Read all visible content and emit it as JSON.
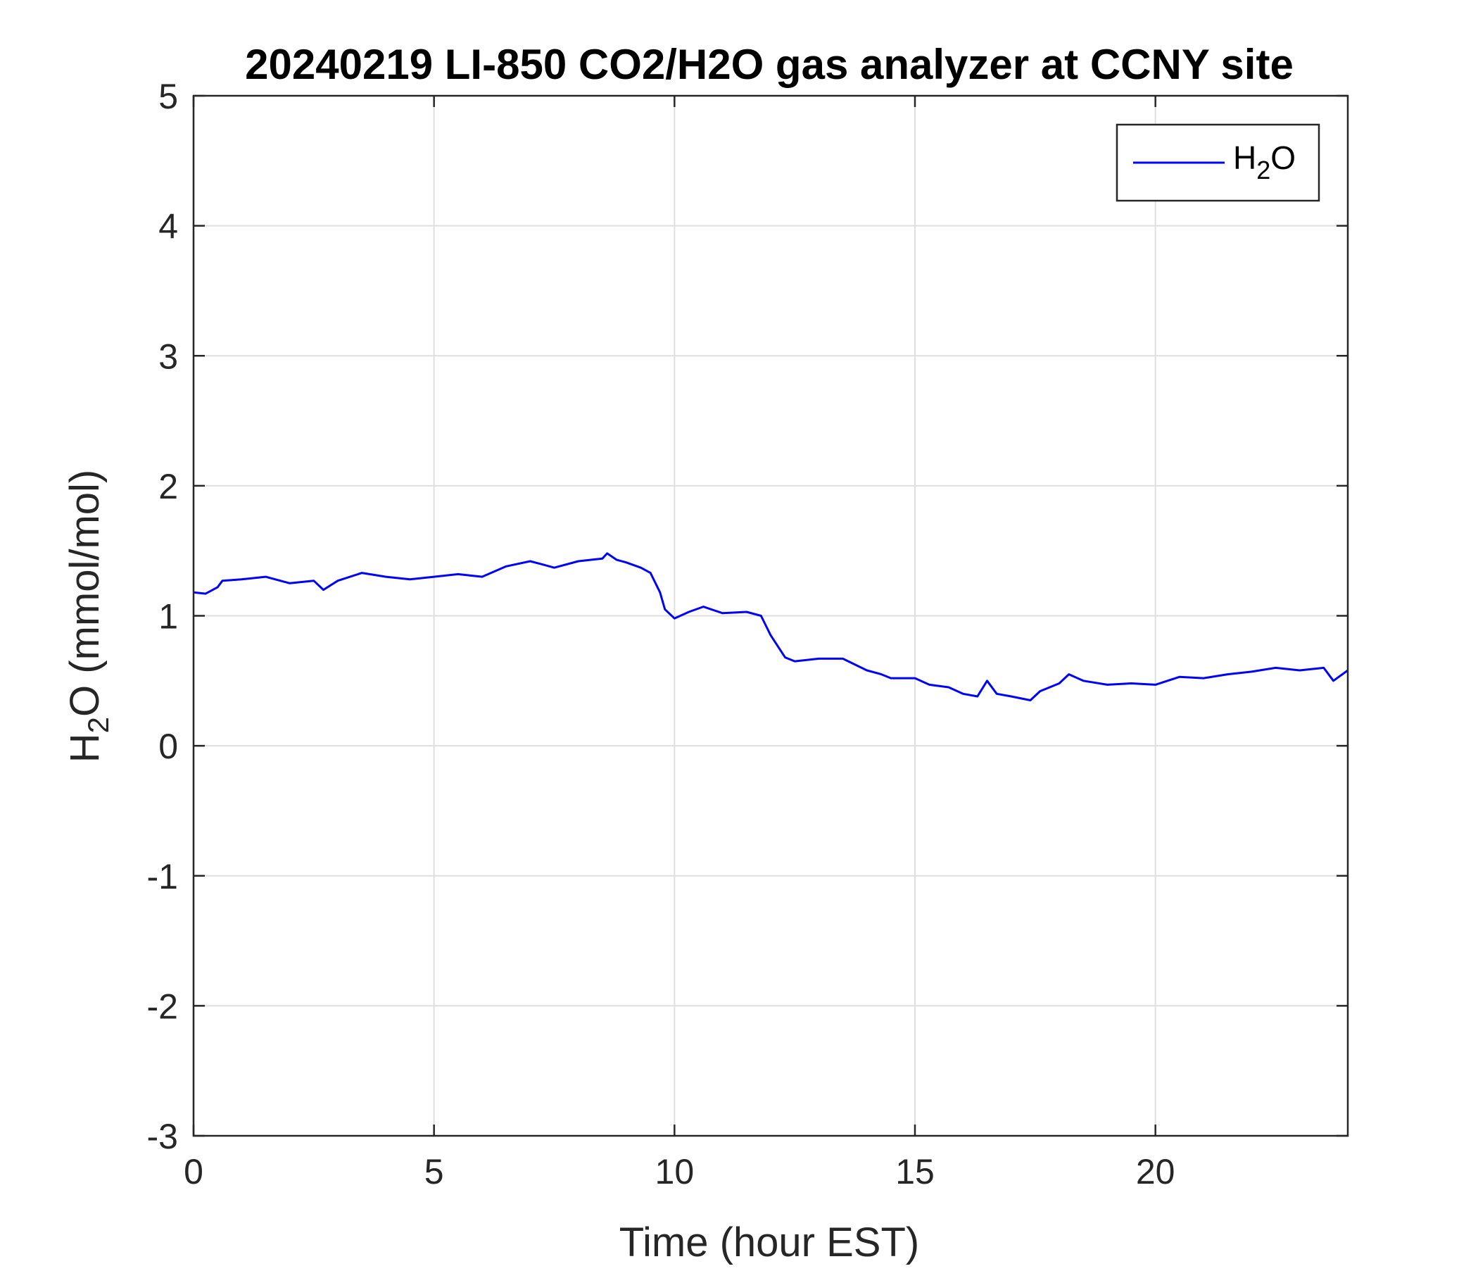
{
  "chart_data": {
    "type": "line",
    "title": "20240219 LI-850 CO2/H2O gas analyzer at CCNY site",
    "xlabel": "Time (hour EST)",
    "ylabel": {
      "main": "H",
      "sub": "2",
      "rest": "O (mmol/mol)"
    },
    "xlim": [
      0,
      24
    ],
    "ylim": [
      -3,
      5
    ],
    "x_ticks": [
      0,
      5,
      10,
      15,
      20
    ],
    "y_ticks": [
      -3,
      -2,
      -1,
      0,
      1,
      2,
      3,
      4,
      5
    ],
    "grid": true,
    "legend_position": "top-right",
    "legend": {
      "main": "H",
      "sub": "2",
      "rest": "O"
    },
    "series": [
      {
        "name": "H2O",
        "color": "#0000ff",
        "x": [
          0,
          0.25,
          0.5,
          0.6,
          1.0,
          1.5,
          2.0,
          2.5,
          2.7,
          3.0,
          3.5,
          4.0,
          4.5,
          5.0,
          5.5,
          6.0,
          6.5,
          7.0,
          7.2,
          7.5,
          8.0,
          8.5,
          8.6,
          8.8,
          9.0,
          9.3,
          9.5,
          9.7,
          9.8,
          10.0,
          10.3,
          10.6,
          11.0,
          11.5,
          11.8,
          12.0,
          12.3,
          12.5,
          13.0,
          13.5,
          14.0,
          14.3,
          14.5,
          15.0,
          15.3,
          15.7,
          16.0,
          16.3,
          16.5,
          16.7,
          17.0,
          17.4,
          17.6,
          18.0,
          18.2,
          18.5,
          19.0,
          19.5,
          20.0,
          20.5,
          21.0,
          21.5,
          22.0,
          22.5,
          23.0,
          23.5,
          23.7,
          24.0
        ],
        "y": [
          1.18,
          1.17,
          1.22,
          1.27,
          1.28,
          1.3,
          1.25,
          1.27,
          1.2,
          1.27,
          1.33,
          1.3,
          1.28,
          1.3,
          1.32,
          1.3,
          1.38,
          1.42,
          1.4,
          1.37,
          1.42,
          1.44,
          1.48,
          1.43,
          1.41,
          1.37,
          1.33,
          1.18,
          1.05,
          0.98,
          1.03,
          1.07,
          1.02,
          1.03,
          1.0,
          0.85,
          0.68,
          0.65,
          0.67,
          0.67,
          0.58,
          0.55,
          0.52,
          0.52,
          0.47,
          0.45,
          0.4,
          0.38,
          0.5,
          0.4,
          0.38,
          0.35,
          0.42,
          0.48,
          0.55,
          0.5,
          0.47,
          0.48,
          0.47,
          0.53,
          0.52,
          0.55,
          0.57,
          0.6,
          0.58,
          0.6,
          0.5,
          0.58
        ]
      }
    ]
  }
}
